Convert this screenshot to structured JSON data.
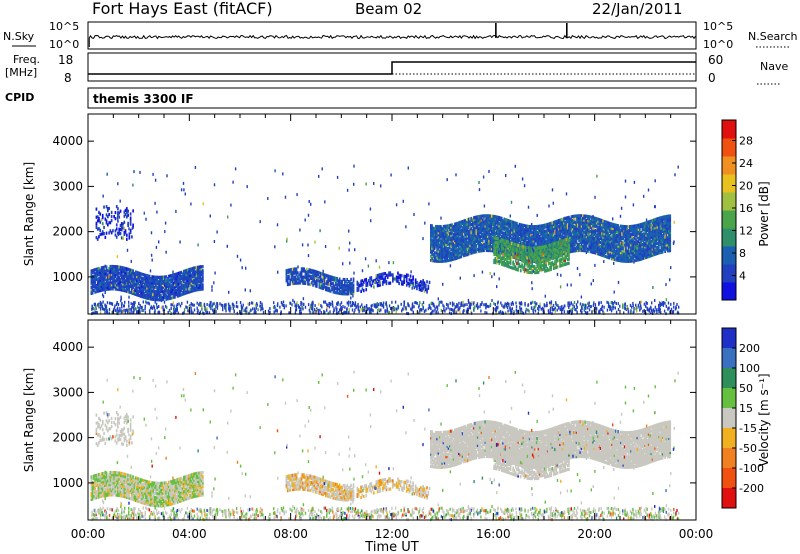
{
  "header": {
    "station": "Fort Hays East (fitACF)",
    "beam": "Beam 02",
    "date": "22/Jan/2011"
  },
  "noise_panel": {
    "left_label": "N.Sky",
    "right_label": "N.Search",
    "ticks": [
      "10^5",
      "10^0"
    ]
  },
  "freq_panel": {
    "left_label_1": "Freq.",
    "left_label_2": "[MHz]",
    "right_label": "Nave",
    "left_ticks": [
      "18",
      "8"
    ],
    "right_ticks": [
      "60",
      "0"
    ]
  },
  "cpid_panel": {
    "label": "CPID",
    "mode": "themis 3300 IF"
  },
  "chart_data": [
    {
      "type": "heatmap",
      "name": "power",
      "ylabel": "Slant Range [km]",
      "xlabel": "Time UT",
      "colorbar_label": "Power [dB]",
      "x_ticks": [
        "00:00",
        "04:00",
        "08:00",
        "12:00",
        "16:00",
        "20:00",
        "00:00"
      ],
      "x_range_hours": [
        0,
        24
      ],
      "y_ticks": [
        1000,
        2000,
        3000,
        4000
      ],
      "y_range_km": [
        180,
        4600
      ],
      "colorbar_ticks": [
        "4",
        "8",
        "12",
        "16",
        "20",
        "24",
        "28"
      ],
      "colorbar_colors": [
        "#1010e0",
        "#2040c0",
        "#1a5fb0",
        "#2e8f6a",
        "#4aa54a",
        "#a0c040",
        "#e8c020",
        "#f09020",
        "#f05010",
        "#e01010"
      ]
    },
    {
      "type": "heatmap",
      "name": "velocity",
      "ylabel": "Slant Range [km]",
      "xlabel": "Time UT",
      "colorbar_label": "Velocity [m s⁻¹]",
      "x_ticks": [
        "00:00",
        "04:00",
        "08:00",
        "12:00",
        "16:00",
        "20:00",
        "00:00"
      ],
      "x_range_hours": [
        0,
        24
      ],
      "y_ticks": [
        1000,
        2000,
        3000,
        4000
      ],
      "y_range_km": [
        180,
        4600
      ],
      "colorbar_ticks": [
        "200",
        "100",
        "50",
        "15",
        "-15",
        "-50",
        "-100",
        "-200"
      ],
      "colorbar_colors": [
        "#1f30c8",
        "#3a70c0",
        "#2e8f5a",
        "#66c040",
        "#c8c8c0",
        "#f0b020",
        "#f08020",
        "#f05010",
        "#e01010"
      ]
    }
  ],
  "x_axis_label": "Time UT"
}
